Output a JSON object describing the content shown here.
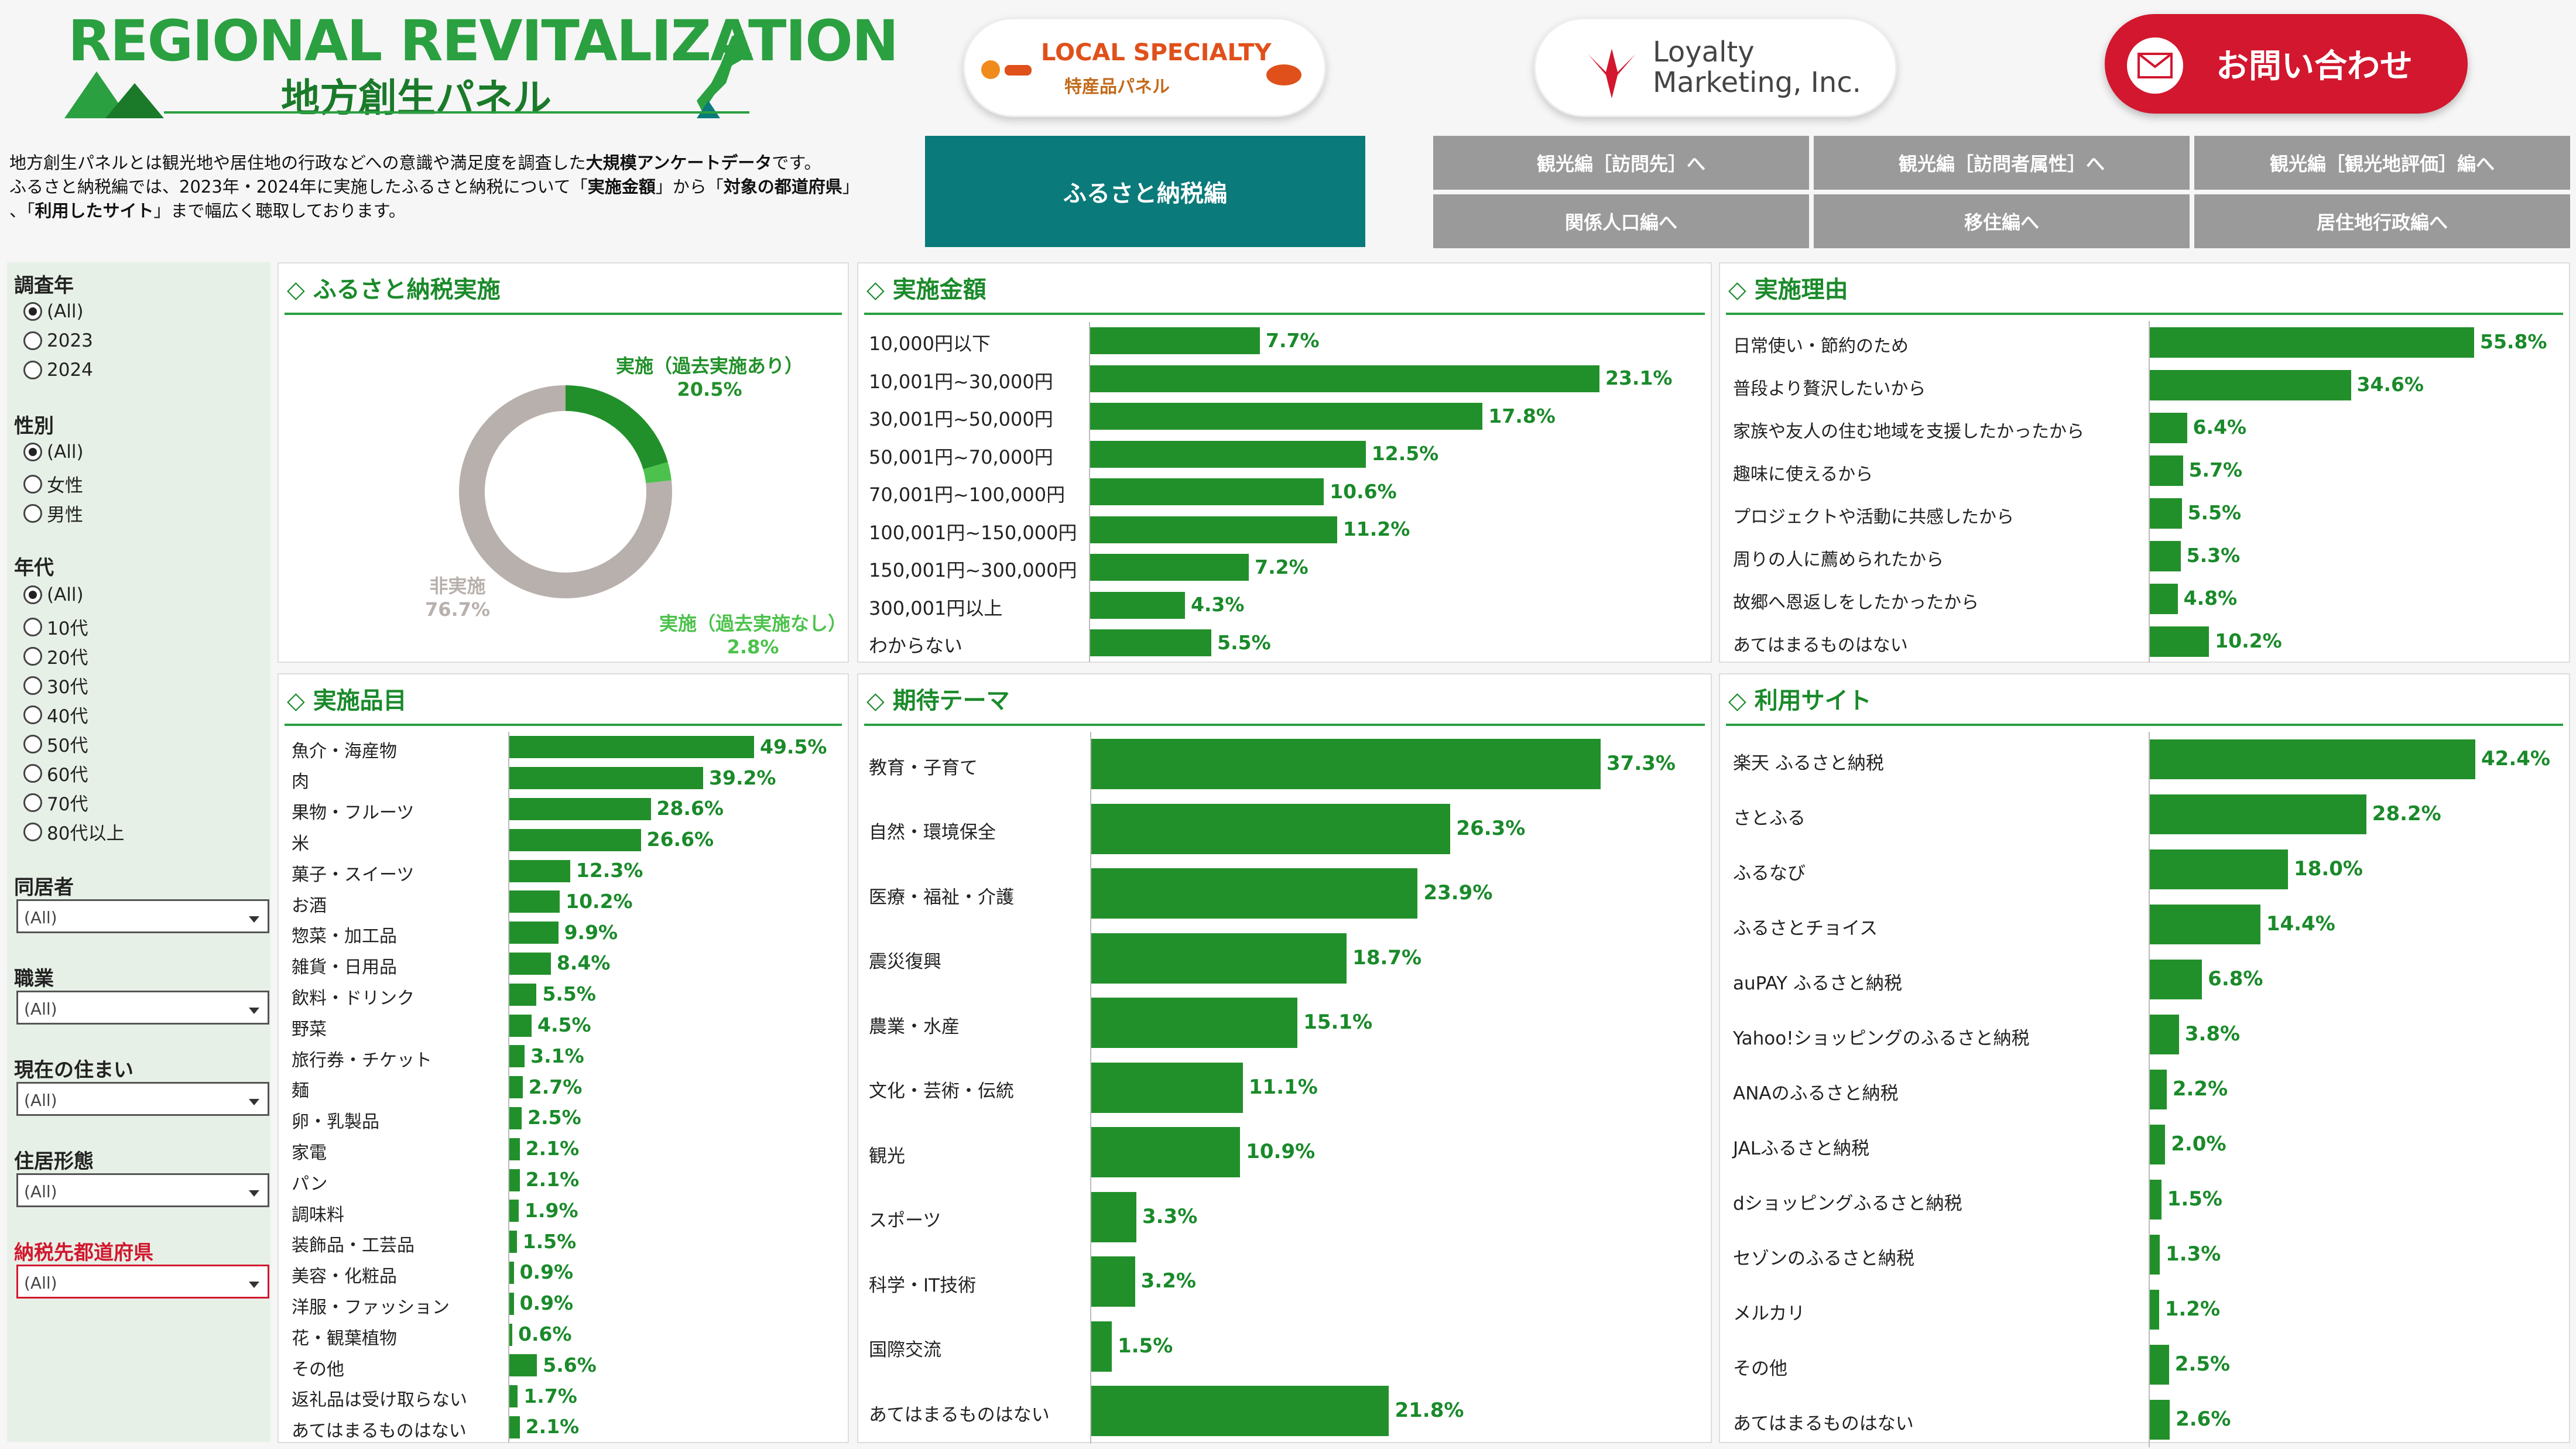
{
  "colors": {
    "accent": "#22902a",
    "title": "#1a8a2a",
    "teal": "#0a7a7a",
    "red": "#d2172e",
    "gray_btn": "#9a9a9a",
    "donut_gray": "#b8b0ac",
    "donut_light": "#4cc24c"
  },
  "header": {
    "logo_title": "REGIONAL REVITALIZATION",
    "logo_sub": "地方創生パネル",
    "local_title": "LOCAL SPECIALTY",
    "local_sub": "特産品パネル",
    "loyalty_line1": "Loyalty",
    "loyalty_line2": "Marketing, Inc.",
    "contact_label": "お問い合わせ"
  },
  "intro": {
    "l1a": "地方創生パネルとは観光地や居住地の行政などへの意識や満足度を調査した",
    "l1b": "大規模アンケートデータ",
    "l1c": "です。",
    "l2a": "ふるさと納税編では、2023年・2024年に実施したふるさと納税について「",
    "l2b": "実施金額",
    "l2c": "」から「",
    "l2d": "対象の都道府県",
    "l2e": "」",
    "l3a": "、「",
    "l3b": "利用したサイト",
    "l3c": "」まで幅広く聴取しております。"
  },
  "nav": {
    "main": "ふるさと納税編",
    "b1": "観光編［訪問先］へ",
    "b2": "観光編［訪問者属性］へ",
    "b3": "観光編［観光地評価］編へ",
    "b4": "関係人口編へ",
    "b5": "移住編へ",
    "b6": "居住地行政編へ"
  },
  "filters": {
    "year_title": "調査年",
    "year_options": [
      "(All)",
      "2023",
      "2024"
    ],
    "gender_title": "性別",
    "gender_options": [
      "(All)",
      "女性",
      "男性"
    ],
    "age_title": "年代",
    "age_options": [
      "(All)",
      "10代",
      "20代",
      "30代",
      "40代",
      "50代",
      "60代",
      "70代",
      "80代以上"
    ],
    "household_title": "同居者",
    "household_value": "(All)",
    "job_title": "職業",
    "job_value": "(All)",
    "residence_title": "現在の住まい",
    "residence_value": "(All)",
    "housing_title": "住居形態",
    "housing_value": "(All)",
    "pref_title": "納税先都道府県",
    "pref_value": "(All)"
  },
  "panels": {
    "p1": "ふるさと納税実施",
    "p2": "実施金額",
    "p3": "実施理由",
    "p4": "実施品目",
    "p5": "期待テーマ",
    "p6": "利用サイト"
  },
  "chart_data": [
    {
      "type": "pie",
      "title": "ふるさと納税実施",
      "categories": [
        "実施（過去実施あり）",
        "実施（過去実施なし）",
        "非実施"
      ],
      "values": [
        20.5,
        2.8,
        76.7
      ],
      "labels": [
        "20.5%",
        "2.8%",
        "76.7%"
      ]
    },
    {
      "type": "bar",
      "title": "実施金額",
      "categories": [
        "10,000円以下",
        "10,001円~30,000円",
        "30,001円~50,000円",
        "50,001円~70,000円",
        "70,001円~100,000円",
        "100,001円~150,000円",
        "150,001円~300,000円",
        "300,001円以上",
        "わからない"
      ],
      "values": [
        7.7,
        23.1,
        17.8,
        12.5,
        10.6,
        11.2,
        7.2,
        4.3,
        5.5
      ],
      "labels": [
        "7.7%",
        "23.1%",
        "17.8%",
        "12.5%",
        "10.6%",
        "11.2%",
        "7.2%",
        "4.3%",
        "5.5%"
      ]
    },
    {
      "type": "bar",
      "title": "実施理由",
      "categories": [
        "日常使い・節約のため",
        "普段より贅沢したいから",
        "家族や友人の住む地域を支援したかったから",
        "趣味に使えるから",
        "プロジェクトや活動に共感したから",
        "周りの人に薦められたから",
        "故郷へ恩返しをしたかったから",
        "あてはまるものはない"
      ],
      "values": [
        55.8,
        34.6,
        6.4,
        5.7,
        5.5,
        5.3,
        4.8,
        10.2
      ],
      "labels": [
        "55.8%",
        "34.6%",
        "6.4%",
        "5.7%",
        "5.5%",
        "5.3%",
        "4.8%",
        "10.2%"
      ]
    },
    {
      "type": "bar",
      "title": "実施品目",
      "categories": [
        "魚介・海産物",
        "肉",
        "果物・フルーツ",
        "米",
        "菓子・スイーツ",
        "お酒",
        "惣菜・加工品",
        "雑貨・日用品",
        "飲料・ドリンク",
        "野菜",
        "旅行券・チケット",
        "麺",
        "卵・乳製品",
        "家電",
        "パン",
        "調味料",
        "装飾品・工芸品",
        "美容・化粧品",
        "洋服・ファッション",
        "花・観葉植物",
        "その他",
        "返礼品は受け取らない",
        "あてはまるものはない"
      ],
      "values": [
        49.5,
        39.2,
        28.6,
        26.6,
        12.3,
        10.2,
        9.9,
        8.4,
        5.5,
        4.5,
        3.1,
        2.7,
        2.5,
        2.1,
        2.1,
        1.9,
        1.5,
        0.9,
        0.9,
        0.6,
        5.6,
        1.7,
        2.1
      ],
      "labels": [
        "49.5%",
        "39.2%",
        "28.6%",
        "26.6%",
        "12.3%",
        "10.2%",
        "9.9%",
        "8.4%",
        "5.5%",
        "4.5%",
        "3.1%",
        "2.7%",
        "2.5%",
        "2.1%",
        "2.1%",
        "1.9%",
        "1.5%",
        "0.9%",
        "0.9%",
        "0.6%",
        "5.6%",
        "1.7%",
        "2.1%"
      ]
    },
    {
      "type": "bar",
      "title": "期待テーマ",
      "categories": [
        "教育・子育て",
        "自然・環境保全",
        "医療・福祉・介護",
        "震災復興",
        "農業・水産",
        "文化・芸術・伝統",
        "観光",
        "スポーツ",
        "科学・IT技術",
        "国際交流",
        "あてはまるものはない"
      ],
      "values": [
        37.3,
        26.3,
        23.9,
        18.7,
        15.1,
        11.1,
        10.9,
        3.3,
        3.2,
        1.5,
        21.8
      ],
      "labels": [
        "37.3%",
        "26.3%",
        "23.9%",
        "18.7%",
        "15.1%",
        "11.1%",
        "10.9%",
        "3.3%",
        "3.2%",
        "1.5%",
        "21.8%"
      ]
    },
    {
      "type": "bar",
      "title": "利用サイト",
      "categories": [
        "楽天 ふるさと納税",
        "さとふる",
        "ふるなび",
        "ふるさとチョイス",
        "auPAY ふるさと納税",
        "Yahoo!ショッピングのふるさと納税",
        "ANAのふるさと納税",
        "JALふるさと納税",
        "dショッピングふるさと納税",
        "セゾンのふるさと納税",
        "メルカリ",
        "その他",
        "あてはまるものはない"
      ],
      "values": [
        42.4,
        28.2,
        18.0,
        14.4,
        6.8,
        3.8,
        2.2,
        2.0,
        1.5,
        1.3,
        1.2,
        2.5,
        2.6
      ],
      "labels": [
        "42.4%",
        "28.2%",
        "18.0%",
        "14.4%",
        "6.8%",
        "3.8%",
        "2.2%",
        "2.0%",
        "1.5%",
        "1.3%",
        "1.2%",
        "2.5%",
        "2.6%"
      ]
    }
  ]
}
